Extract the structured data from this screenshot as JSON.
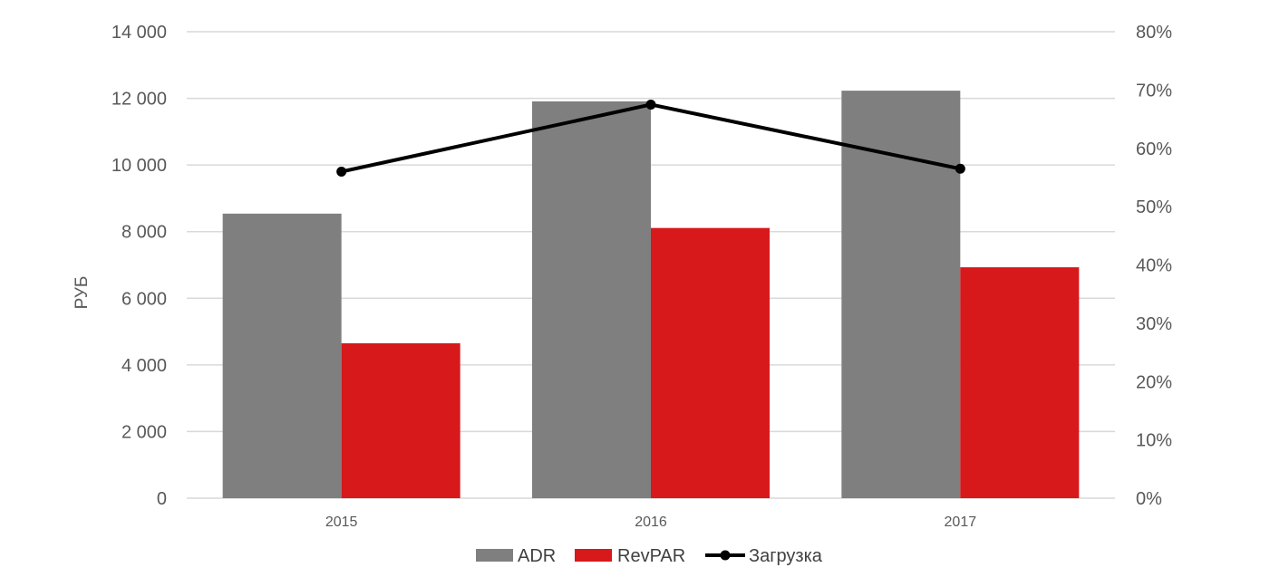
{
  "chart_data": {
    "type": "bar",
    "categories": [
      "2015",
      "2016",
      "2017"
    ],
    "series": [
      {
        "name": "ADR",
        "type": "bar",
        "axis": "left",
        "color": "#7f7f7f",
        "values": [
          8540,
          11910,
          12230
        ]
      },
      {
        "name": "RevPAR",
        "type": "bar",
        "axis": "left",
        "color": "#d7191c",
        "values": [
          4650,
          8110,
          6930
        ]
      },
      {
        "name": "Загрузка",
        "type": "line",
        "axis": "right",
        "color": "#000000",
        "values": [
          0.56,
          0.675,
          0.565
        ]
      }
    ],
    "ylabel": "РУБ",
    "ylim": [
      0,
      14000
    ],
    "y_ticks": [
      "0",
      "2 000",
      "4 000",
      "6 000",
      "8 000",
      "10 000",
      "12 000",
      "14 000"
    ],
    "y2lim": [
      0,
      0.8
    ],
    "y2_ticks": [
      "0%",
      "10%",
      "20%",
      "30%",
      "40%",
      "50%",
      "60%",
      "70%",
      "80%"
    ],
    "grid": true,
    "legend_position": "bottom"
  }
}
